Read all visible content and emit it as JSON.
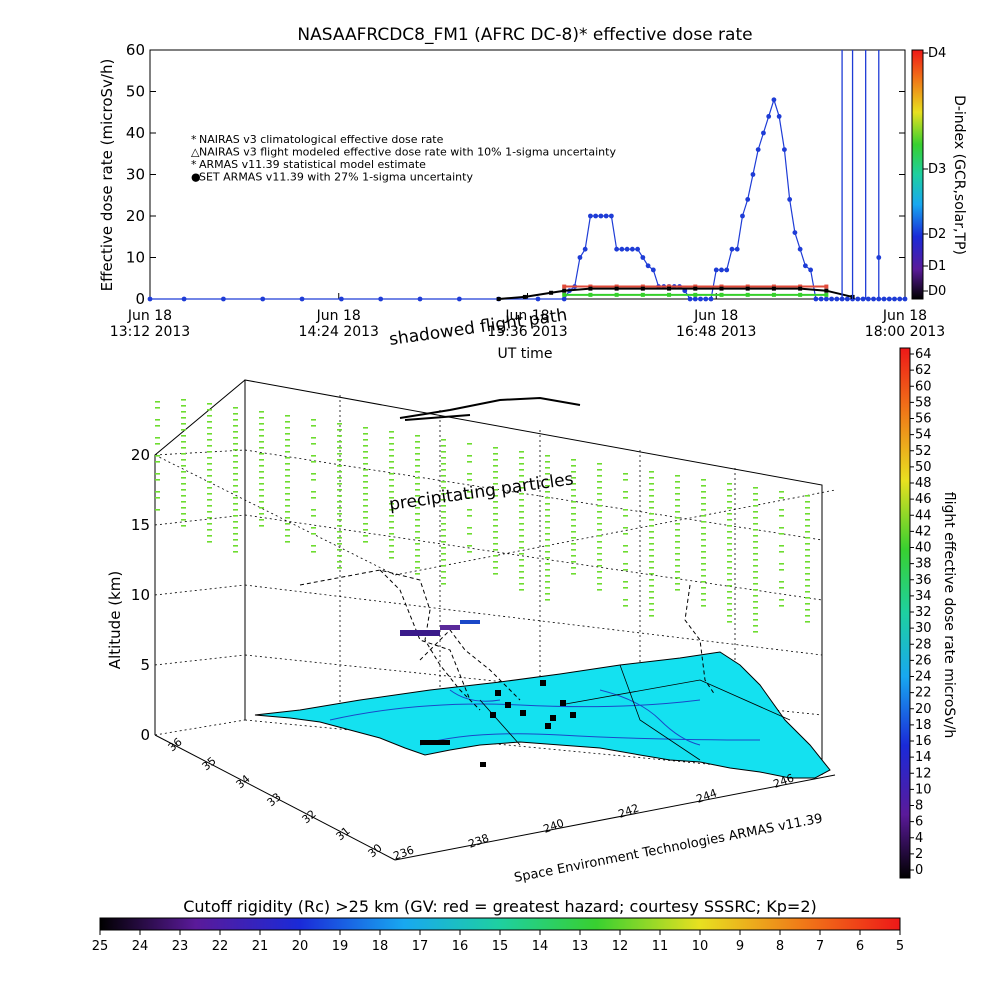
{
  "colors": {
    "nairas_clim": "#e04a3a",
    "nairas_flight": "#000000",
    "armas_model": "#35d02a",
    "set_armas": "#1e3cd6",
    "map_fill": "#14e1f0",
    "precip_dots": "#6ddc30"
  },
  "chart_data": [
    {
      "type": "line",
      "title": "NASAAFRCDC8_FM1 (AFRC DC-8)* effective dose rate",
      "xlabel": "UT time",
      "ylabel": "Effective dose rate (microSv/h)",
      "y2label": "D-index (GCR,solar,TP)",
      "ylim": [
        0,
        60
      ],
      "y_ticks": [
        "0",
        "10",
        "20",
        "30",
        "40",
        "50",
        "60"
      ],
      "x_ticks": [
        {
          "date": "Jun 18",
          "time": "13:12 2013"
        },
        {
          "date": "Jun 18",
          "time": "14:24 2013"
        },
        {
          "date": "Jun 18",
          "time": "15:36 2013"
        },
        {
          "date": "Jun 18",
          "time": "16:48 2013"
        },
        {
          "date": "Jun 18",
          "time": "18:00 2013"
        }
      ],
      "xlim_minutes_ut": [
        792,
        1080
      ],
      "d_index_labels": [
        "D4",
        "D3",
        "D2",
        "D1",
        "D0"
      ],
      "d_index_colors": [
        "#ee2222",
        "#f4a020",
        "#f2e21c",
        "#3ac23a",
        "#18c0c8",
        "#2a68f0",
        "#3a2ac8",
        "#222222"
      ],
      "legend_placement": "top-left",
      "legend": [
        "NAIRAS v3 climatological effective dose rate",
        "NAIRAS v3 flight modeled effective dose rate with 10% 1-sigma uncertainty",
        "ARMAS v11.39 statistical model estimate",
        "SET ARMAS v11.39 with 27% 1-sigma uncertainty"
      ],
      "series": [
        {
          "name": "SET ARMAS v11.39 with 27% 1-sigma uncertainty",
          "x": [
            792,
            805,
            820,
            835,
            850,
            865,
            880,
            895,
            910,
            925,
            940,
            950,
            952,
            954,
            956,
            958,
            960,
            962,
            964,
            966,
            968,
            970,
            972,
            974,
            976,
            978,
            980,
            982,
            984,
            986,
            988,
            990,
            992,
            994,
            996,
            998,
            1000,
            1002,
            1004,
            1006,
            1008,
            1010,
            1012,
            1014,
            1016,
            1018,
            1020,
            1022,
            1024,
            1026,
            1028,
            1030,
            1032,
            1034,
            1036,
            1038,
            1040,
            1042,
            1044,
            1046,
            1048,
            1050,
            1052,
            1054,
            1056,
            1058,
            1060,
            1062,
            1064,
            1066,
            1068,
            1070,
            1072,
            1074,
            1076,
            1078,
            1080
          ],
          "y": [
            0,
            0,
            0,
            0,
            0,
            0,
            0,
            0,
            0,
            0,
            0,
            0,
            2,
            3,
            10,
            12,
            20,
            20,
            20,
            20,
            20,
            12,
            12,
            12,
            12,
            12,
            10,
            8,
            7,
            3,
            3,
            3,
            3,
            3,
            2,
            0,
            0,
            0,
            0,
            0,
            7,
            7,
            7,
            12,
            12,
            20,
            24,
            30,
            36,
            40,
            44,
            48,
            44,
            36,
            24,
            16,
            12,
            8,
            7,
            0,
            0,
            0,
            0,
            0,
            0,
            0,
            0,
            0,
            0,
            0,
            0,
            0,
            0,
            0,
            0,
            0,
            0
          ]
        },
        {
          "name": "ARMAS v11.39 statistical model estimate",
          "x": [
            950,
            960,
            970,
            980,
            990,
            1000,
            1010,
            1020,
            1030,
            1040,
            1050
          ],
          "y": [
            1,
            1,
            1,
            1,
            1,
            1,
            1,
            1,
            1,
            1,
            1
          ]
        },
        {
          "name": "NAIRAS v3 climatological effective dose rate",
          "x": [
            950,
            960,
            970,
            980,
            990,
            1000,
            1010,
            1020,
            1030,
            1040,
            1050
          ],
          "y": [
            3,
            3,
            3,
            3,
            3,
            3,
            3,
            3,
            3,
            3,
            3
          ]
        },
        {
          "name": "NAIRAS v3 flight modeled effective dose rate with 10% 1-sigma uncertainty",
          "x": [
            925,
            935,
            945,
            950,
            960,
            970,
            980,
            990,
            1000,
            1010,
            1020,
            1030,
            1040,
            1050,
            1060
          ],
          "y": [
            0,
            0.5,
            1.5,
            2,
            2.5,
            2.5,
            2.5,
            2.5,
            2.5,
            2.5,
            2.5,
            2.5,
            2.5,
            2,
            0.5
          ]
        }
      ],
      "spikes_x": [
        1056,
        1060,
        1065,
        1070
      ],
      "spike_tail_y": 10
    },
    {
      "type": "scatter",
      "zlabel": "Altitude (km)",
      "z_ticks": [
        "0",
        "5",
        "10",
        "15",
        "20"
      ],
      "lat_ticks": [
        "30",
        "31",
        "32",
        "33",
        "34",
        "35",
        "36"
      ],
      "lon_ticks": [
        "236",
        "238",
        "240",
        "242",
        "244",
        "246"
      ],
      "label_shadowed": "shadowed flight path",
      "label_precip": "precipitating particles",
      "credit": "Space Environment Technologies ARMAS v11.39",
      "colorbar_label": "flight effective dose rate microSv/h",
      "colorbar_ticks": [
        "64",
        "62",
        "60",
        "58",
        "56",
        "54",
        "52",
        "50",
        "48",
        "46",
        "44",
        "42",
        "40",
        "38",
        "36",
        "34",
        "32",
        "30",
        "28",
        "26",
        "24",
        "22",
        "20",
        "18",
        "16",
        "14",
        "12",
        "10",
        "8",
        "6",
        "4",
        "2",
        "0"
      ]
    },
    {
      "type": "heatmap",
      "title": "Cutoff rigidity (Rc) >25 km (GV: red = greatest hazard; courtesy SSSRC; Kp=2)",
      "ticks": [
        "25",
        "24",
        "23",
        "22",
        "21",
        "20",
        "19",
        "18",
        "17",
        "16",
        "15",
        "14",
        "13",
        "12",
        "11",
        "10",
        "9",
        "8",
        "7",
        "6",
        "5"
      ]
    }
  ]
}
